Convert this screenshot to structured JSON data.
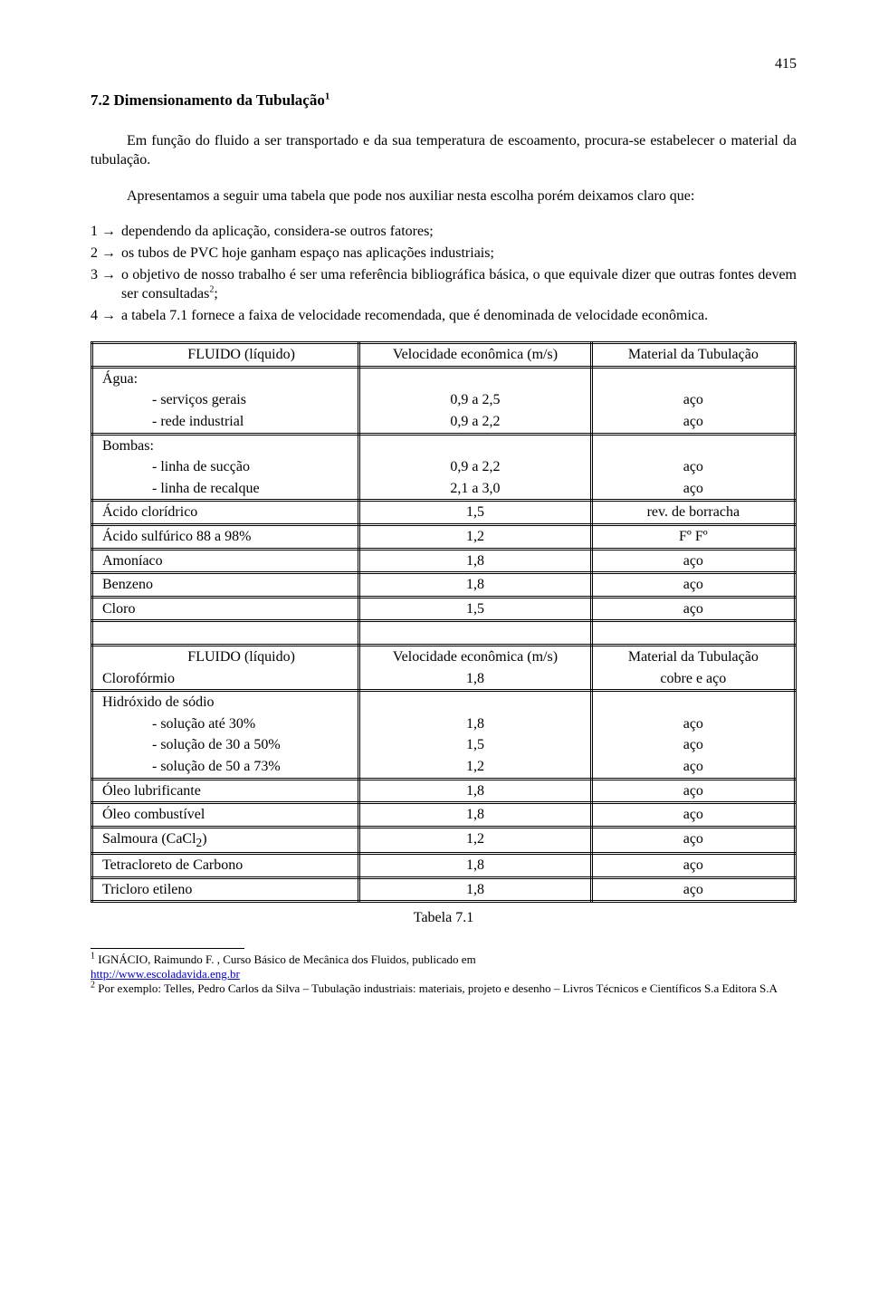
{
  "page_number": "415",
  "heading": "7.2 Dimensionamento da Tubulação",
  "heading_sup": "1",
  "para1": "Em função do fluido a ser transportado e da sua temperatura de escoamento, procura-se estabelecer o material da tubulação.",
  "para2": "Apresentamos a seguir uma tabela que pode nos auxiliar nesta escolha porém deixamos claro que:",
  "list": {
    "i1": {
      "num": "1 →",
      "text": "dependendo da aplicação, considera-se outros fatores;"
    },
    "i2": {
      "num": "2 →",
      "text": "os tubos de PVC hoje ganham espaço nas aplicações industriais;"
    },
    "i3": {
      "num": "3 →",
      "text_a": "o objetivo de nosso trabalho é ser uma referência bibliográfica básica, o que equivale dizer que outras fontes devem ser consultadas",
      "sup": "2",
      "text_b": ";"
    },
    "i4": {
      "num": "4 →",
      "text": "a tabela 7.1 fornece a faixa de velocidade recomendada, que é denominada de velocidade econômica."
    }
  },
  "table1": {
    "head": {
      "c1": "FLUIDO (líquido)",
      "c2": "Velocidade econômica (m/s)",
      "c3": "Material da Tubulação"
    },
    "agua_label": "Água:",
    "agua_r1": {
      "label": "- serviços gerais",
      "v": "0,9 a 2,5",
      "m": "aço"
    },
    "agua_r2": {
      "label": "- rede industrial",
      "v": "0,9 a 2,2",
      "m": "aço"
    },
    "bombas_label": "Bombas:",
    "bombas_r1": {
      "label": "- linha de sucção",
      "v": "0,9 a 2,2",
      "m": "aço"
    },
    "bombas_r2": {
      "label": "- linha de recalque",
      "v": "2,1 a 3,0",
      "m": "aço"
    },
    "r_acido_clor": {
      "label": "Ácido clorídrico",
      "v": "1,5",
      "m": "rev. de borracha"
    },
    "r_acido_sulf": {
      "label": "Ácido sulfúrico 88 a 98%",
      "v": "1,2",
      "m": "Fº Fº"
    },
    "r_amoniaco": {
      "label": "Amoníaco",
      "v": "1,8",
      "m": "aço"
    },
    "r_benzeno": {
      "label": "Benzeno",
      "v": "1,8",
      "m": "aço"
    },
    "r_cloro": {
      "label": "Cloro",
      "v": "1,5",
      "m": "aço"
    }
  },
  "table2": {
    "head": {
      "c1": "FLUIDO (líquido)",
      "c2": "Velocidade econômica (m/s)",
      "c3": "Material da Tubulação"
    },
    "r_cloroformio": {
      "label": "Clorofórmio",
      "v": "1,8",
      "m": "cobre e aço"
    },
    "hidroxido_label": "Hidróxido de sódio",
    "hidroxido_r1": {
      "label": "- solução até 30%",
      "v": "1,8",
      "m": "aço"
    },
    "hidroxido_r2": {
      "label": "- solução de 30 a 50%",
      "v": "1,5",
      "m": "aço"
    },
    "hidroxido_r3": {
      "label": "- solução de 50 a 73%",
      "v": "1,2",
      "m": "aço"
    },
    "r_oleo_lub": {
      "label": "Óleo lubrificante",
      "v": "1,8",
      "m": "aço"
    },
    "r_oleo_comb": {
      "label": "Óleo combustível",
      "v": "1,8",
      "m": "aço"
    },
    "r_salmoura": {
      "label_a": "Salmoura (CaCl",
      "sub": "2",
      "label_b": ")",
      "v": "1,2",
      "m": "aço"
    },
    "r_tetra": {
      "label": "Tetracloreto de Carbono",
      "v": "1,8",
      "m": "aço"
    },
    "r_tricloro": {
      "label": "Tricloro etileno",
      "v": "1,8",
      "m": "aço"
    }
  },
  "caption": "Tabela 7.1",
  "footnotes": {
    "f1": {
      "sup": "1",
      "text_a": " IGNÁCIO, Raimundo F. , Curso Básico de Mecânica dos Fluidos, publicado em ",
      "link_text": "http://www.escoladavida.eng.br",
      "link_href": "http://www.escoladavida.eng.br"
    },
    "f2": {
      "sup": "2",
      "text": " Por exemplo: Telles, Pedro Carlos da Silva – Tubulação industriais: materiais, projeto e desenho – Livros Técnicos e Científicos S.a Editora S.A"
    }
  }
}
